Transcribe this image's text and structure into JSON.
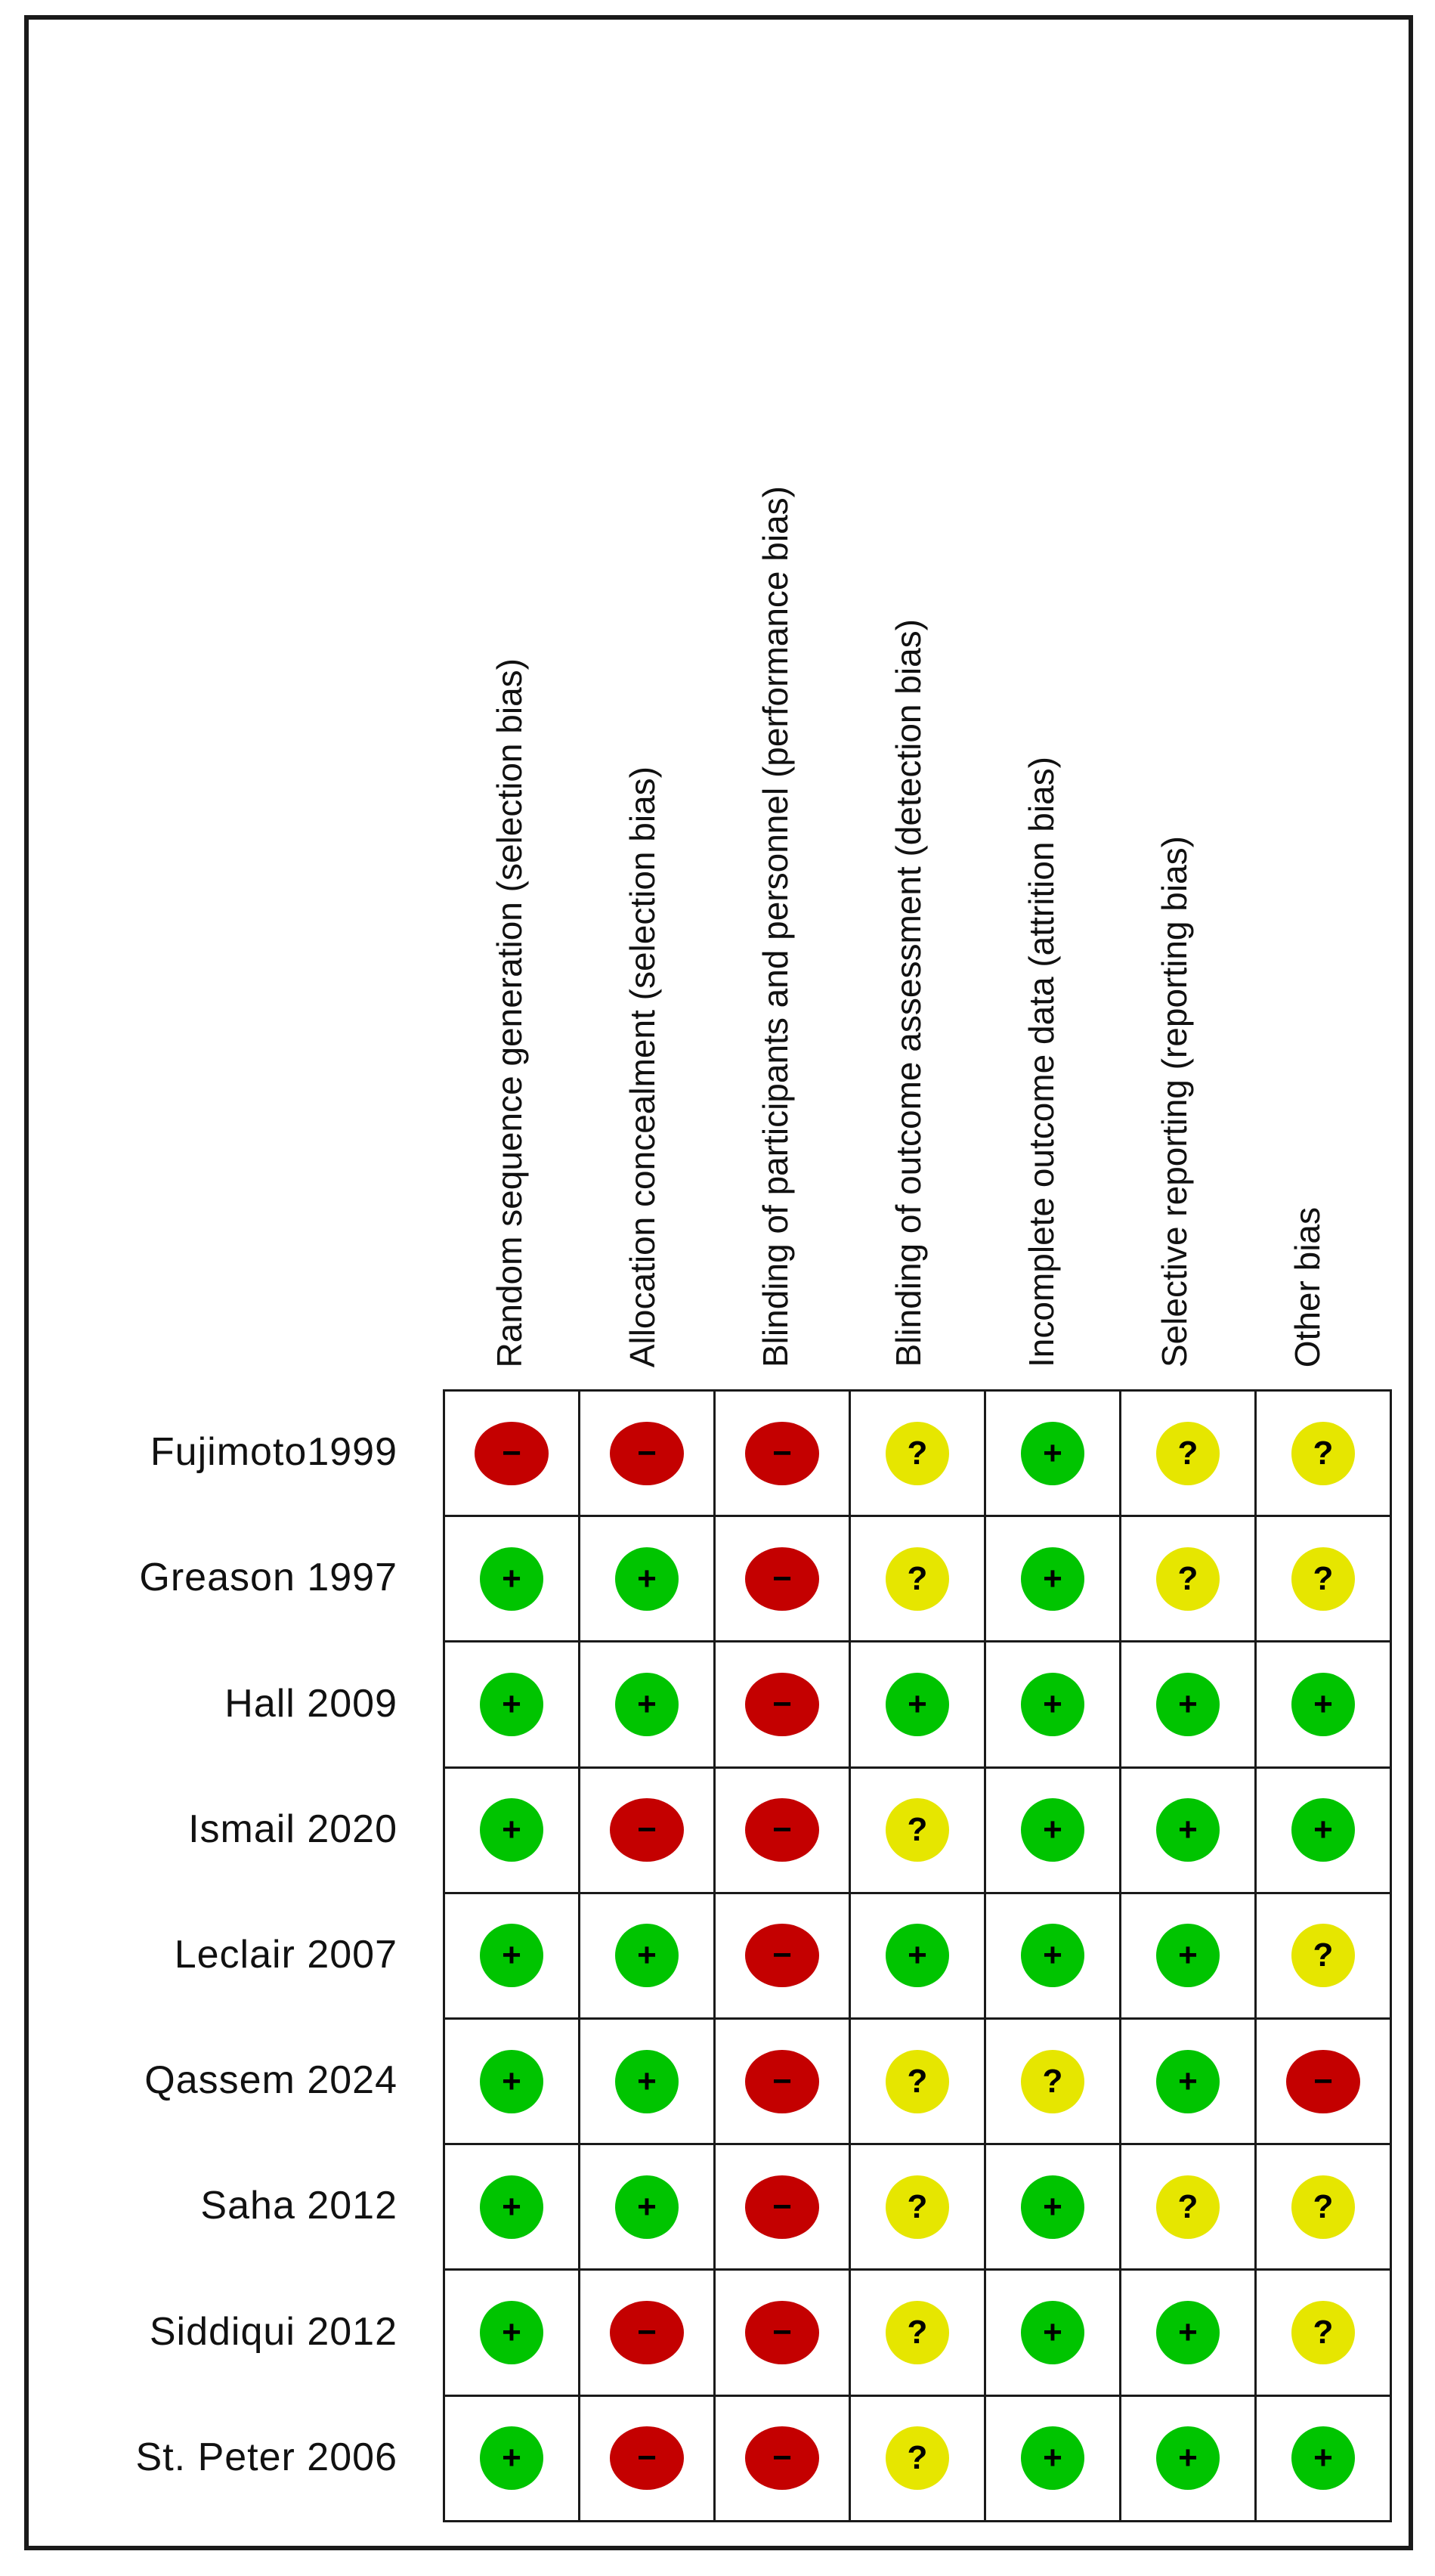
{
  "chart_data": {
    "type": "table",
    "columns": [
      "Random sequence generation (selection bias)",
      "Allocation concealment (selection bias)",
      "Blinding of participants and personnel (performance bias)",
      "Blinding of outcome assessment (detection bias)",
      "Incomplete outcome data (attrition bias)",
      "Selective reporting (reporting bias)",
      "Other bias"
    ],
    "rows": [
      {
        "study": "Fujimoto1999",
        "ratings": [
          "-",
          "-",
          "-",
          "?",
          "+",
          "?",
          "?"
        ]
      },
      {
        "study": "Greason 1997",
        "ratings": [
          "+",
          "+",
          "-",
          "?",
          "+",
          "?",
          "?"
        ]
      },
      {
        "study": "Hall 2009",
        "ratings": [
          "+",
          "+",
          "-",
          "+",
          "+",
          "+",
          "+"
        ]
      },
      {
        "study": "Ismail 2020",
        "ratings": [
          "+",
          "-",
          "-",
          "?",
          "+",
          "+",
          "+"
        ]
      },
      {
        "study": "Leclair 2007",
        "ratings": [
          "+",
          "+",
          "-",
          "+",
          "+",
          "+",
          "?"
        ]
      },
      {
        "study": "Qassem 2024",
        "ratings": [
          "+",
          "+",
          "-",
          "?",
          "?",
          "+",
          "-"
        ]
      },
      {
        "study": "Saha 2012",
        "ratings": [
          "+",
          "+",
          "-",
          "?",
          "+",
          "?",
          "?"
        ]
      },
      {
        "study": "Siddiqui 2012",
        "ratings": [
          "+",
          "-",
          "-",
          "?",
          "+",
          "+",
          "?"
        ]
      },
      {
        "study": "St. Peter 2006",
        "ratings": [
          "+",
          "-",
          "-",
          "?",
          "+",
          "+",
          "+"
        ]
      }
    ],
    "legend_symbols": {
      "+": {
        "meaning": "low risk",
        "color": "#00c400",
        "glyph": "+"
      },
      "-": {
        "meaning": "high risk",
        "color": "#c40000",
        "glyph": "−"
      },
      "?": {
        "meaning": "unclear risk",
        "color": "#e6e600",
        "glyph": "?"
      }
    }
  }
}
